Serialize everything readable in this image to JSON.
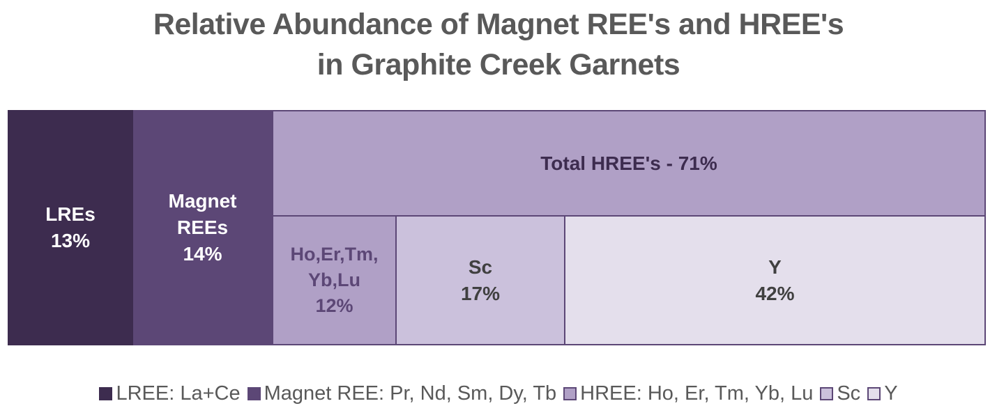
{
  "title": {
    "line1": "Relative Abundance of Magnet REE's and HREE's",
    "line2": "in Graphite Creek Garnets"
  },
  "cells": {
    "lree": {
      "name": "LREs",
      "value": "13%"
    },
    "magnet": {
      "name_line1": "Magnet",
      "name_line2": "REEs",
      "value": "14%"
    },
    "hree_total": {
      "label": "Total HREE's - 71%"
    },
    "hree": {
      "name_line1": "Ho,Er,Tm,",
      "name_line2": "Yb,Lu",
      "value": "12%"
    },
    "sc": {
      "name": "Sc",
      "value": "17%"
    },
    "y": {
      "name": "Y",
      "value": "42%"
    }
  },
  "legend": [
    {
      "label": "LREE: La+Ce",
      "color": "#3d2c4f"
    },
    {
      "label": "Magnet REE: Pr, Nd, Sm, Dy, Tb",
      "color": "#5c4776"
    },
    {
      "label": "HREE: Ho, Er, Tm, Yb, Lu",
      "color": "#b0a0c6"
    },
    {
      "label": "Sc",
      "color": "#cbc1dc"
    },
    {
      "label": "Y",
      "color": "#e4dfec"
    }
  ],
  "chart_data": {
    "type": "treemap",
    "title": "Relative Abundance of Magnet REE's and HREE's in Graphite Creek Garnets",
    "categories": [
      "LREE: La+Ce",
      "Magnet REE: Pr, Nd, Sm, Dy, Tb",
      "HREE: Ho, Er, Tm, Yb, Lu",
      "Sc",
      "Y"
    ],
    "values": [
      13,
      14,
      12,
      17,
      42
    ],
    "units": "%",
    "groups": [
      {
        "name": "Total HREE's",
        "value": 71,
        "members": [
          "HREE: Ho, Er, Tm, Yb, Lu",
          "Sc",
          "Y"
        ]
      }
    ],
    "colors": [
      "#3d2c4f",
      "#5c4776",
      "#b0a0c6",
      "#cbc1dc",
      "#e4dfec"
    ],
    "legend_position": "bottom"
  }
}
